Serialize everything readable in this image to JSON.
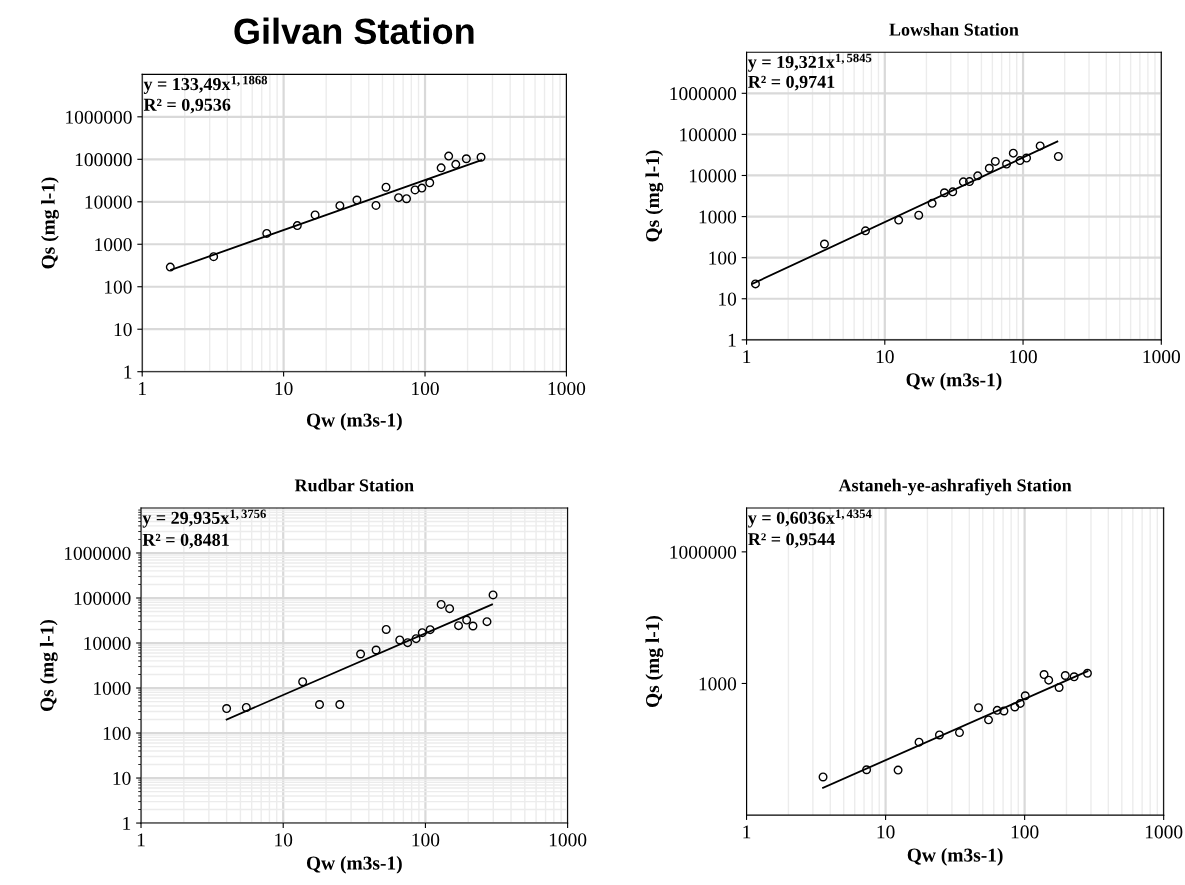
{
  "chart_data": [
    {
      "type": "scatter",
      "title": "Gilvan Station",
      "xlabel": "Qw (m3s-1)",
      "ylabel": "Qs (mg l-1)",
      "log": "xy",
      "grid": true,
      "xlim": [
        1,
        1000
      ],
      "ylim": [
        1,
        10000000
      ],
      "xticks": [
        1,
        10,
        100,
        1000
      ],
      "yticks": [
        1,
        10,
        100,
        1000,
        10000,
        100000,
        1000000
      ],
      "annotations": [
        "y = 133,49x$^{1,1868}$",
        "R² = 0,9536"
      ],
      "series": [
        {
          "color": "#000000",
          "marker": "circle",
          "x": [
            1.58,
            3.2,
            7.6,
            12.5,
            16.7,
            25,
            33,
            45,
            53,
            65,
            74,
            85,
            95,
            108,
            130,
            147,
            165,
            196,
            249
          ],
          "values": [
            290,
            510,
            1800,
            2750,
            4900,
            8100,
            11000,
            8200,
            22000,
            12500,
            11800,
            19000,
            21000,
            28000,
            63000,
            119000,
            76000,
            103000,
            112000
          ]
        },
        {
          "type": "line",
          "color": "#000000",
          "x": [
            1.6,
            250
          ],
          "values": [
            250,
            95000
          ]
        }
      ]
    },
    {
      "type": "scatter",
      "title": "Lowshan Station",
      "xlabel": "Qw (m3s-1)",
      "ylabel": "Qs (mg l-1)",
      "log": "xy",
      "grid": true,
      "xlim": [
        1,
        1000
      ],
      "ylim": [
        1,
        10000000
      ],
      "xticks": [
        1,
        10,
        100,
        1000
      ],
      "yticks": [
        1,
        10,
        100,
        1000,
        10000,
        100000,
        1000000
      ],
      "annotations": [
        "y = 19,321x$^{1,5845}$",
        "R² = 0,9741"
      ],
      "series": [
        {
          "color": "#000000",
          "marker": "circle",
          "x": [
            1.16,
            3.66,
            7.25,
            12.6,
            17.6,
            22,
            27,
            31,
            37,
            41,
            47,
            57,
            63,
            76,
            85,
            95,
            106,
            133,
            180
          ],
          "values": [
            23,
            215,
            450,
            820,
            1080,
            2100,
            3800,
            4000,
            7000,
            7100,
            9800,
            15000,
            22000,
            19000,
            35000,
            23000,
            26600,
            52500,
            29000
          ]
        },
        {
          "type": "line",
          "color": "#000000",
          "x": [
            1.1,
            177
          ],
          "values": [
            23,
            67000
          ]
        }
      ]
    },
    {
      "type": "scatter",
      "title": "Rudbar Station",
      "xlabel": "Qw (m3s-1)",
      "ylabel": "Qs (mg l-1)",
      "log": "xy",
      "grid": true,
      "xlim": [
        1,
        1000
      ],
      "ylim": [
        1,
        10000000
      ],
      "xticks": [
        1,
        10,
        100,
        1000
      ],
      "yticks": [
        1,
        10,
        100,
        1000,
        10000,
        100000,
        1000000
      ],
      "annotations": [
        "y = 29,935x$^{1,3756}$",
        "R² = 0,8481"
      ],
      "series": [
        {
          "color": "#000000",
          "marker": "circle",
          "x": [
            4.0,
            5.5,
            13.7,
            18,
            25,
            35,
            45,
            53,
            66,
            75,
            86,
            95,
            108,
            129,
            148,
            171,
            195,
            216,
            271,
            299
          ],
          "values": [
            350,
            370,
            1380,
            430,
            430,
            5700,
            7000,
            20000,
            11700,
            10200,
            12500,
            17000,
            19800,
            72000,
            58000,
            24300,
            32400,
            23900,
            29800,
            117000
          ]
        },
        {
          "type": "line",
          "color": "#000000",
          "x": [
            4.0,
            294
          ],
          "values": [
            200,
            72000
          ]
        }
      ]
    },
    {
      "type": "scatter",
      "title": "Astaneh-ye-ashrafiyeh Station",
      "xlabel": "Qw (m3s-1)",
      "ylabel": "Qs (mg l-1)",
      "log": "xy",
      "grid": "x",
      "xlim": [
        1,
        1000
      ],
      "ylim": [
        1,
        10000000
      ],
      "xticks": [
        1,
        10,
        100,
        1000
      ],
      "yticks": [
        1000,
        1000000
      ],
      "annotations": [
        "y = 0,6036x$^{1,4354}$",
        "R² = 0,9544"
      ],
      "series": [
        {
          "color": "#000000",
          "marker": "circle",
          "x": [
            3.55,
            7.3,
            12.3,
            17.4,
            24.4,
            34,
            46.6,
            55,
            63.5,
            71,
            85,
            93,
            101,
            138,
            149,
            177,
            196,
            227,
            283
          ],
          "values": [
            7.4,
            10.8,
            10.6,
            46,
            67,
            76,
            280,
            148,
            244,
            236,
            291,
            351,
            525,
            1600,
            1190,
            810,
            1520,
            1420,
            1710
          ]
        },
        {
          "type": "line",
          "color": "#000000",
          "x": [
            3.55,
            283
          ],
          "values": [
            4.2,
            1900
          ]
        }
      ]
    }
  ]
}
